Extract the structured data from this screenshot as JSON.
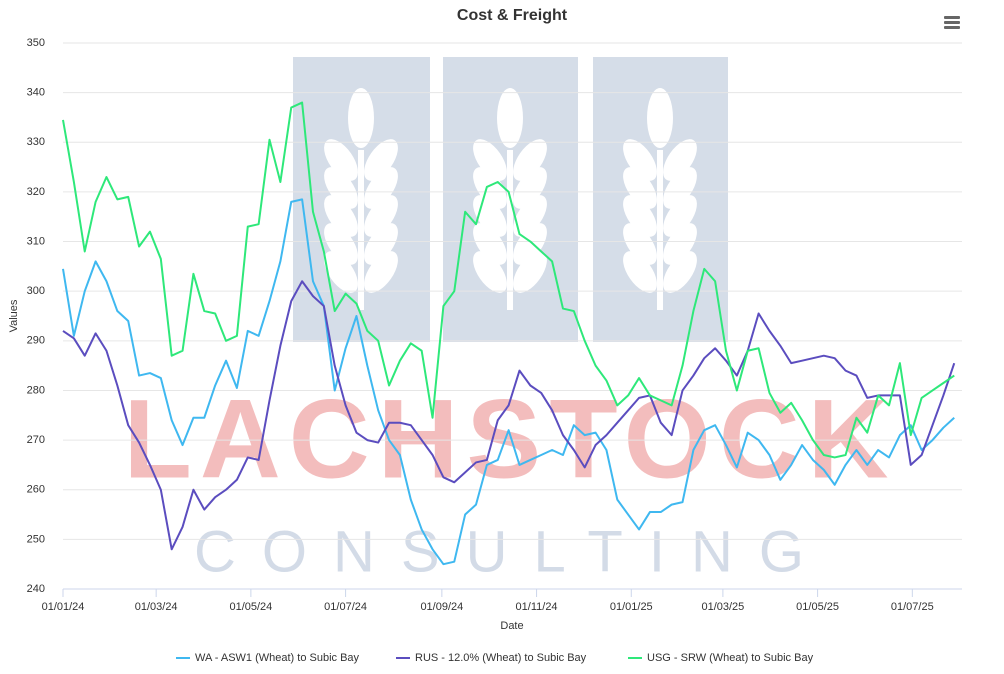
{
  "chart_data": {
    "type": "line",
    "title": "Cost & Freight",
    "xlabel": "Date",
    "ylabel": "Values",
    "watermark": {
      "brand": "LACHSTOCK",
      "tagline": "CONSULTING"
    },
    "x": [
      "2024-01-01",
      "2024-01-08",
      "2024-01-15",
      "2024-01-22",
      "2024-01-29",
      "2024-02-05",
      "2024-02-12",
      "2024-02-19",
      "2024-02-26",
      "2024-03-04",
      "2024-03-11",
      "2024-03-18",
      "2024-03-25",
      "2024-04-01",
      "2024-04-08",
      "2024-04-15",
      "2024-04-22",
      "2024-04-29",
      "2024-05-06",
      "2024-05-13",
      "2024-05-20",
      "2024-05-27",
      "2024-06-03",
      "2024-06-10",
      "2024-06-17",
      "2024-06-24",
      "2024-07-01",
      "2024-07-08",
      "2024-07-15",
      "2024-07-22",
      "2024-07-29",
      "2024-08-05",
      "2024-08-12",
      "2024-08-19",
      "2024-08-26",
      "2024-09-02",
      "2024-09-09",
      "2024-09-16",
      "2024-09-23",
      "2024-09-30",
      "2024-10-07",
      "2024-10-14",
      "2024-10-21",
      "2024-10-28",
      "2024-11-04",
      "2024-11-11",
      "2024-11-18",
      "2024-11-25",
      "2024-12-02",
      "2024-12-09",
      "2024-12-16",
      "2024-12-23",
      "2024-12-30",
      "2025-01-06",
      "2025-01-13",
      "2025-01-20",
      "2025-01-27",
      "2025-02-03",
      "2025-02-10",
      "2025-02-17",
      "2025-02-24",
      "2025-03-03",
      "2025-03-10",
      "2025-03-17",
      "2025-03-24",
      "2025-03-31",
      "2025-04-07",
      "2025-04-14",
      "2025-04-21",
      "2025-04-28",
      "2025-05-05",
      "2025-05-12",
      "2025-05-19",
      "2025-05-26",
      "2025-06-02",
      "2025-06-09",
      "2025-06-16",
      "2025-06-23",
      "2025-06-30",
      "2025-07-07",
      "2025-07-14",
      "2025-07-21",
      "2025-07-28"
    ],
    "series": [
      {
        "name": "WA - ASW1 (Wheat) to Subic Bay",
        "color": "#3fb8f0",
        "values": [
          304.5,
          291,
          300,
          306,
          302,
          296,
          294,
          283,
          283.5,
          282.5,
          274,
          269,
          274.5,
          274.5,
          281,
          286,
          280.5,
          292,
          291,
          298,
          306,
          318,
          318.5,
          302,
          297,
          280,
          288.5,
          295,
          285,
          276,
          270,
          267,
          258,
          252,
          248,
          245,
          245.5,
          255,
          257,
          265,
          266,
          272,
          265,
          266,
          267,
          268,
          267,
          273,
          271,
          271.5,
          268,
          258,
          255,
          252,
          255.5,
          255.5,
          257,
          257.5,
          268,
          272,
          273,
          269,
          264.5,
          271.5,
          270,
          267,
          262,
          265,
          269,
          266,
          264,
          261,
          265,
          268,
          265,
          268,
          266.5,
          271,
          273,
          268,
          270,
          272.5,
          274.5
        ]
      },
      {
        "name": "RUS - 12.0% (Wheat) to Subic Bay",
        "color": "#5b4dbf",
        "values": [
          292,
          290.5,
          287,
          291.5,
          288,
          281,
          273,
          269.5,
          265,
          260,
          248,
          252.5,
          260,
          256,
          258.5,
          260,
          262,
          266.5,
          266,
          278,
          289,
          298,
          302,
          299,
          297,
          285,
          277,
          271.5,
          270,
          269.5,
          273.5,
          273.5,
          273,
          270,
          267,
          262.5,
          261.5,
          263.5,
          265.5,
          266,
          274,
          277,
          284,
          281,
          279.5,
          276,
          271,
          268,
          264.5,
          269,
          271,
          273.5,
          276,
          278.5,
          279,
          273.5,
          271,
          280,
          283,
          286.5,
          288.5,
          286,
          283,
          288,
          295.5,
          292,
          289,
          285.5,
          286,
          286.5,
          287,
          286.5,
          284,
          283,
          278.5,
          279,
          279,
          279,
          265,
          267,
          273,
          279,
          285.5
        ]
      },
      {
        "name": "USG - SRW (Wheat) to Subic Bay",
        "color": "#2ee87a",
        "values": [
          334.5,
          322,
          308,
          318,
          323,
          318.5,
          319,
          309,
          312,
          306.5,
          287,
          288,
          303.5,
          296,
          295.5,
          290,
          291,
          313,
          313.5,
          330.5,
          322,
          337,
          338,
          316,
          308,
          296,
          299.5,
          297.5,
          292,
          290,
          281,
          286,
          289.5,
          288,
          274.5,
          297,
          300,
          316,
          313.5,
          321,
          322,
          320,
          311.5,
          310,
          308,
          306,
          296.5,
          296,
          290,
          285,
          282,
          277,
          279,
          282.5,
          279,
          278,
          277,
          285,
          296,
          304.5,
          302,
          288,
          280,
          288,
          288.5,
          279.5,
          275.5,
          277.5,
          274,
          270,
          267,
          266.5,
          267,
          274.5,
          271.5,
          279,
          277,
          285.5,
          271,
          278.5,
          280,
          281.5,
          283
        ]
      }
    ],
    "xlim": [
      "2024-01-01",
      "2025-08-02"
    ],
    "xticks": [
      {
        "value": "2024-01-01",
        "label": "01/01/24"
      },
      {
        "value": "2024-03-01",
        "label": "01/03/24"
      },
      {
        "value": "2024-05-01",
        "label": "01/05/24"
      },
      {
        "value": "2024-07-01",
        "label": "01/07/24"
      },
      {
        "value": "2024-09-01",
        "label": "01/09/24"
      },
      {
        "value": "2024-11-01",
        "label": "01/11/24"
      },
      {
        "value": "2025-01-01",
        "label": "01/01/25"
      },
      {
        "value": "2025-03-01",
        "label": "01/03/25"
      },
      {
        "value": "2025-05-01",
        "label": "01/05/25"
      },
      {
        "value": "2025-07-01",
        "label": "01/07/25"
      }
    ],
    "ylim": [
      240,
      350
    ],
    "yticks": [
      240,
      250,
      260,
      270,
      280,
      290,
      300,
      310,
      320,
      330,
      340,
      350
    ],
    "grid": true,
    "legend": "bottom"
  }
}
